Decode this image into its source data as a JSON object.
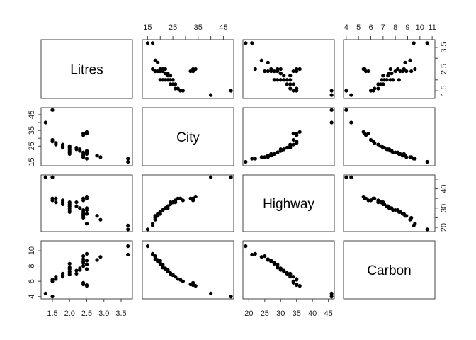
{
  "chart_data": {
    "type": "scatter",
    "subtype": "pairs_matrix",
    "variables": [
      "Litres",
      "City",
      "Highway",
      "Carbon"
    ],
    "ranges": {
      "Litres": [
        1.25,
        3.75
      ],
      "City": [
        14,
        48
      ],
      "Highway": [
        19,
        46
      ],
      "Carbon": [
        4.0,
        11.0
      ]
    },
    "ticks": {
      "Litres": [
        1.5,
        2.0,
        2.5,
        3.0,
        3.5
      ],
      "City": [
        15,
        25,
        35,
        45
      ],
      "Highway": [
        20,
        25,
        30,
        35,
        40,
        45
      ],
      "Carbon": [
        4,
        5,
        6,
        7,
        8,
        9,
        10,
        11
      ]
    },
    "ticks_left": {
      "City": [
        15,
        20,
        25,
        30,
        35,
        40,
        45
      ],
      "Carbon": [
        4,
        6,
        8,
        10
      ]
    },
    "ticks_right": {
      "Litres": [
        1.5,
        2.0,
        2.5,
        3.0,
        3.5
      ],
      "Highway": [
        20,
        25,
        30,
        35,
        40,
        45
      ]
    },
    "tick_labels": {
      "Litres": [
        "1.5",
        "2.0",
        "2.5",
        "3.0",
        "3.5"
      ],
      "City_top": [
        "15",
        "25",
        "35",
        "45"
      ],
      "City_left": [
        "15",
        "25",
        "35",
        "45"
      ],
      "Highway_bottom": [
        "20",
        "25",
        "30",
        "35",
        "40",
        "45"
      ],
      "Highway_right": [
        "20",
        "30",
        "40"
      ],
      "Carbon_top": [
        "4",
        "5",
        "6",
        "7",
        "8",
        "9",
        "10",
        "11"
      ],
      "Carbon_left": [
        "4",
        "6",
        "8",
        "10"
      ],
      "Litres_right": [
        "1.5",
        "2.5",
        "3.5"
      ]
    },
    "observations": [
      {
        "Litres": 1.3,
        "City": 40,
        "Highway": 46,
        "Carbon": 4.4
      },
      {
        "Litres": 1.5,
        "City": 48,
        "Highway": 46,
        "Carbon": 4.0
      },
      {
        "Litres": 3.7,
        "City": 17,
        "Highway": 21,
        "Carbon": 9.5
      },
      {
        "Litres": 3.7,
        "City": 15,
        "Highway": 19,
        "Carbon": 10.6
      },
      {
        "Litres": 1.5,
        "City": 29,
        "Highway": 34,
        "Carbon": 6.0
      },
      {
        "Litres": 1.5,
        "City": 28,
        "Highway": 35,
        "Carbon": 6.2
      },
      {
        "Litres": 1.6,
        "City": 27,
        "Highway": 35,
        "Carbon": 6.3
      },
      {
        "Litres": 1.6,
        "City": 26,
        "Highway": 33,
        "Carbon": 6.6
      },
      {
        "Litres": 1.8,
        "City": 26,
        "Highway": 34,
        "Carbon": 6.6
      },
      {
        "Litres": 1.8,
        "City": 25,
        "Highway": 33,
        "Carbon": 6.8
      },
      {
        "Litres": 1.8,
        "City": 24,
        "Highway": 32,
        "Carbon": 7.0
      },
      {
        "Litres": 2.0,
        "City": 25,
        "Highway": 33,
        "Carbon": 6.9
      },
      {
        "Litres": 2.0,
        "City": 24,
        "Highway": 32,
        "Carbon": 7.1
      },
      {
        "Litres": 2.0,
        "City": 23,
        "Highway": 31,
        "Carbon": 7.3
      },
      {
        "Litres": 2.0,
        "City": 22,
        "Highway": 30,
        "Carbon": 7.6
      },
      {
        "Litres": 2.0,
        "City": 21,
        "Highway": 29,
        "Carbon": 7.8
      },
      {
        "Litres": 2.0,
        "City": 20,
        "Highway": 28,
        "Carbon": 8.3
      },
      {
        "Litres": 2.2,
        "City": 24,
        "Highway": 33,
        "Carbon": 7.0
      },
      {
        "Litres": 2.2,
        "City": 23,
        "Highway": 31,
        "Carbon": 7.4
      },
      {
        "Litres": 2.3,
        "City": 23,
        "Highway": 30,
        "Carbon": 7.5
      },
      {
        "Litres": 2.3,
        "City": 22,
        "Highway": 30,
        "Carbon": 7.7
      },
      {
        "Litres": 2.4,
        "City": 21,
        "Highway": 29,
        "Carbon": 8.0
      },
      {
        "Litres": 2.4,
        "City": 20,
        "Highway": 28,
        "Carbon": 8.4
      },
      {
        "Litres": 2.4,
        "City": 19,
        "Highway": 27,
        "Carbon": 8.6
      },
      {
        "Litres": 2.4,
        "City": 18,
        "Highway": 26,
        "Carbon": 8.9
      },
      {
        "Litres": 2.4,
        "City": 18,
        "Highway": 25,
        "Carbon": 9.3
      },
      {
        "Litres": 2.5,
        "City": 17,
        "Highway": 22,
        "Carbon": 9.6
      },
      {
        "Litres": 2.5,
        "City": 22,
        "Highway": 30,
        "Carbon": 7.6
      },
      {
        "Litres": 2.4,
        "City": 32,
        "Highway": 35,
        "Carbon": 5.6
      },
      {
        "Litres": 2.5,
        "City": 33,
        "Highway": 35,
        "Carbon": 5.5
      },
      {
        "Litres": 2.5,
        "City": 34,
        "Highway": 36,
        "Carbon": 5.4
      },
      {
        "Litres": 2.4,
        "City": 33,
        "Highway": 34,
        "Carbon": 5.8
      },
      {
        "Litres": 2.5,
        "City": 21,
        "Highway": 29,
        "Carbon": 8.2
      },
      {
        "Litres": 2.5,
        "City": 20,
        "Highway": 27,
        "Carbon": 8.7
      },
      {
        "Litres": 2.8,
        "City": 19,
        "Highway": 26,
        "Carbon": 8.8
      },
      {
        "Litres": 2.9,
        "City": 18,
        "Highway": 24,
        "Carbon": 9.2
      }
    ],
    "title": "",
    "xlabel": "",
    "ylabel": "",
    "grid": false,
    "legend": "none"
  }
}
